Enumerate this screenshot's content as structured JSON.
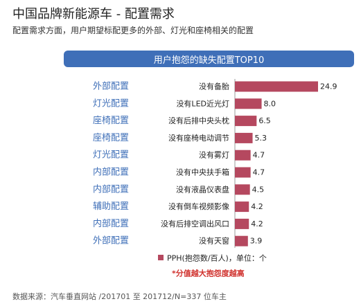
{
  "header": {
    "title": "中国品牌新能源车 - 配置需求",
    "subtitle": "配置需求方面，用户期望标配更多的外部、灯光和座椅相关的配置"
  },
  "chart_data": {
    "type": "bar",
    "orientation": "horizontal",
    "title": "用户抱怨的缺失配置TOP10",
    "categories": [
      "没有备胎",
      "没有LED近光灯",
      "没有后排中央头枕",
      "没有座椅电动调节",
      "没有雾灯",
      "没有中央扶手箱",
      "没有液晶仪表盘",
      "没有倒车视频影像",
      "没有后排空调出风口",
      "没有天窗"
    ],
    "groups": [
      "外部配置",
      "灯光配置",
      "座椅配置",
      "座椅配置",
      "灯光配置",
      "内部配置",
      "内部配置",
      "辅助配置",
      "内部配置",
      "外部配置"
    ],
    "series": [
      {
        "name": "PPH(抱怨数/百人)，单位：个",
        "values": [
          24.9,
          8.0,
          6.5,
          5.3,
          4.7,
          4.7,
          4.5,
          4.2,
          4.2,
          3.9
        ],
        "color": "#b5485f"
      }
    ],
    "value_labels": [
      "24.9",
      "8.0",
      "6.5",
      "5.3",
      "4.7",
      "4.7",
      "4.5",
      "4.2",
      "4.2",
      "3.9"
    ],
    "xlim": [
      0,
      24.9
    ],
    "grid": false,
    "legend": "bottom",
    "note": "*分值越大抱怨度越高",
    "colors": {
      "bar": "#b5485f",
      "group_label": "#3f6fb8",
      "banner": "#3f6fb8",
      "note": "#d0312d"
    }
  },
  "footer": {
    "source": "数据来源：汽车垂直网站 /201701 至 201712/N=337 位车主"
  }
}
